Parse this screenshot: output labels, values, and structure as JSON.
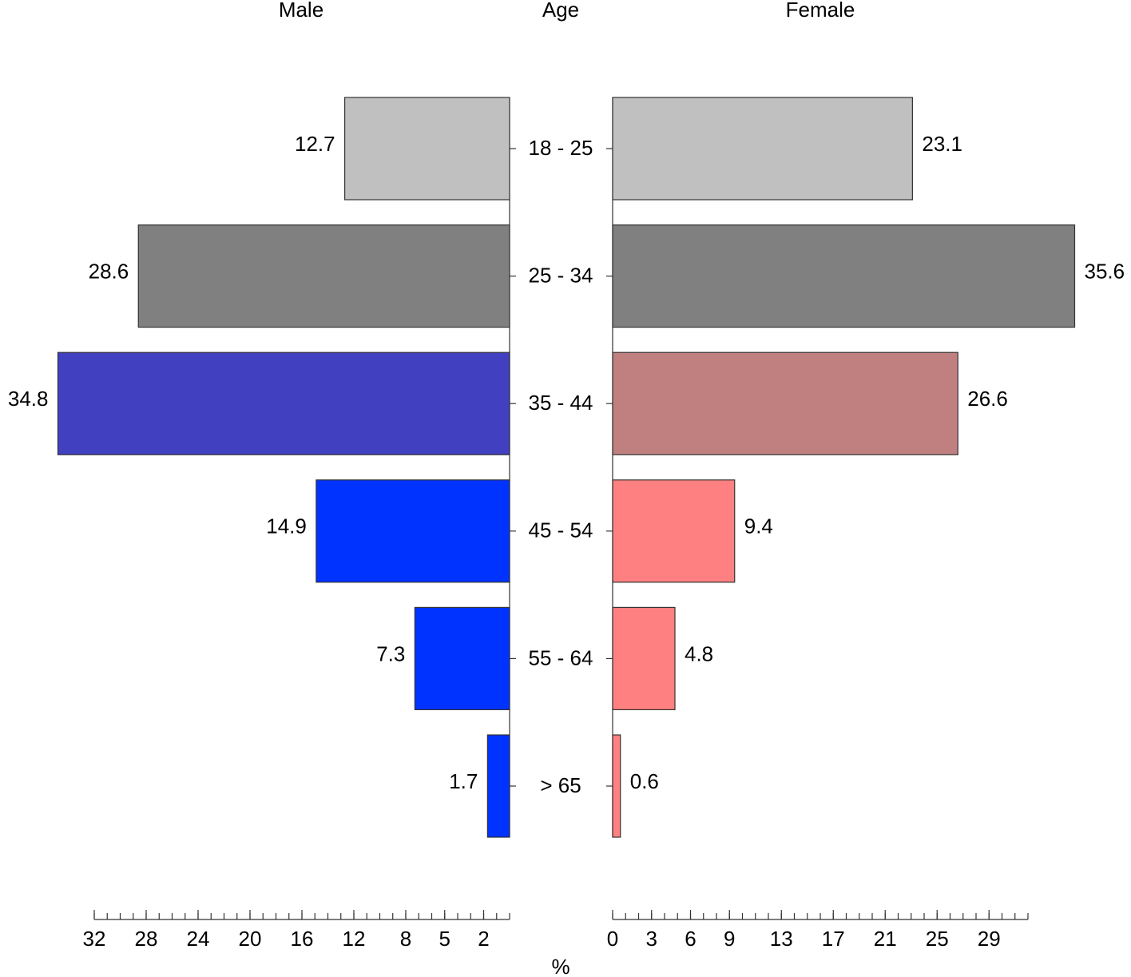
{
  "chart_data": {
    "type": "pyramid",
    "ylabel": "Age",
    "xlabel": "%",
    "categories": [
      "18 - 25",
      "25 - 34",
      "35 - 44",
      "45 - 54",
      "55 - 64",
      "> 65"
    ],
    "xlim": [
      0,
      32
    ],
    "minor_ticks": [
      0,
      1,
      2,
      3,
      4,
      5,
      6,
      7,
      8,
      9,
      10,
      11,
      12,
      13,
      14,
      15,
      16,
      17,
      18,
      19,
      20,
      21,
      22,
      23,
      24,
      25,
      26,
      27,
      28,
      29,
      30,
      31,
      32
    ],
    "series": [
      {
        "name": "Male",
        "values": [
          12.7,
          28.6,
          34.8,
          14.9,
          7.3,
          1.7
        ],
        "colors": [
          "#c0c0c0",
          "#808080",
          "#4040c0",
          "#0033ff",
          "#0033ff",
          "#0033ff"
        ],
        "xticks": [
          32,
          28,
          24,
          20,
          16,
          12,
          8,
          5,
          2
        ]
      },
      {
        "name": "Female",
        "values": [
          23.1,
          35.6,
          26.6,
          9.4,
          4.8,
          0.6
        ],
        "colors": [
          "#c0c0c0",
          "#808080",
          "#c08080",
          "#ff8080",
          "#ff8080",
          "#ff8080"
        ],
        "xticks": [
          0,
          3,
          6,
          9,
          13,
          17,
          21,
          25,
          29
        ]
      }
    ]
  }
}
